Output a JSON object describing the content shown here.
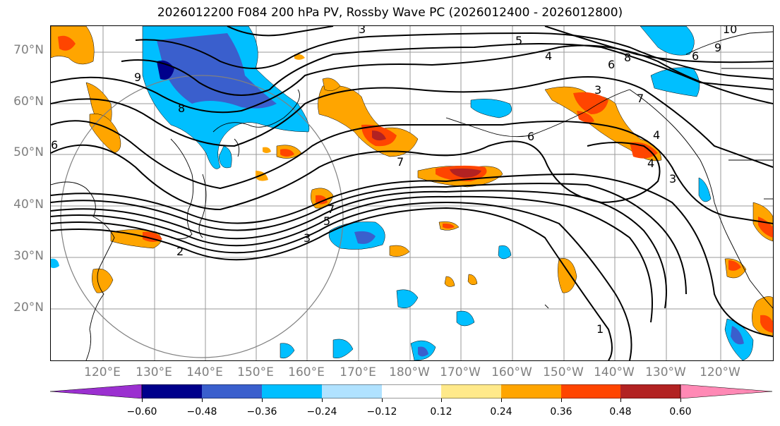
{
  "title": "2026012200 F084 200 hPa PV, Rossby Wave PC (2026012400 - 2026012800)",
  "lat_labels": [
    "70°N",
    "60°N",
    "50°N",
    "40°N",
    "30°N",
    "20°N"
  ],
  "lon_labels": [
    "120°E",
    "130°E",
    "140°E",
    "150°E",
    "160°E",
    "170°E",
    "180°W",
    "170°W",
    "160°W",
    "150°W",
    "140°W",
    "130°W",
    "120°W"
  ],
  "colorbar": {
    "ticks": [
      "−0.60",
      "−0.48",
      "−0.36",
      "−0.24",
      "−0.12",
      "0.12",
      "0.24",
      "0.36",
      "0.48",
      "0.60"
    ],
    "colors": [
      "#9b30d0",
      "#00008b",
      "#3a5fcd",
      "#00bfff",
      "#b0e2ff",
      "#ffffff",
      "#ffe98a",
      "#ffa500",
      "#ff4500",
      "#b22222",
      "#ff89b5"
    ]
  },
  "contour_labels": [
    "3",
    "5",
    "4",
    "6",
    "8",
    "10",
    "9",
    "3",
    "6",
    "7",
    "8",
    "9",
    "6",
    "7",
    "5",
    "3",
    "4",
    "3",
    "2",
    "1",
    "7",
    "6",
    "4"
  ]
}
